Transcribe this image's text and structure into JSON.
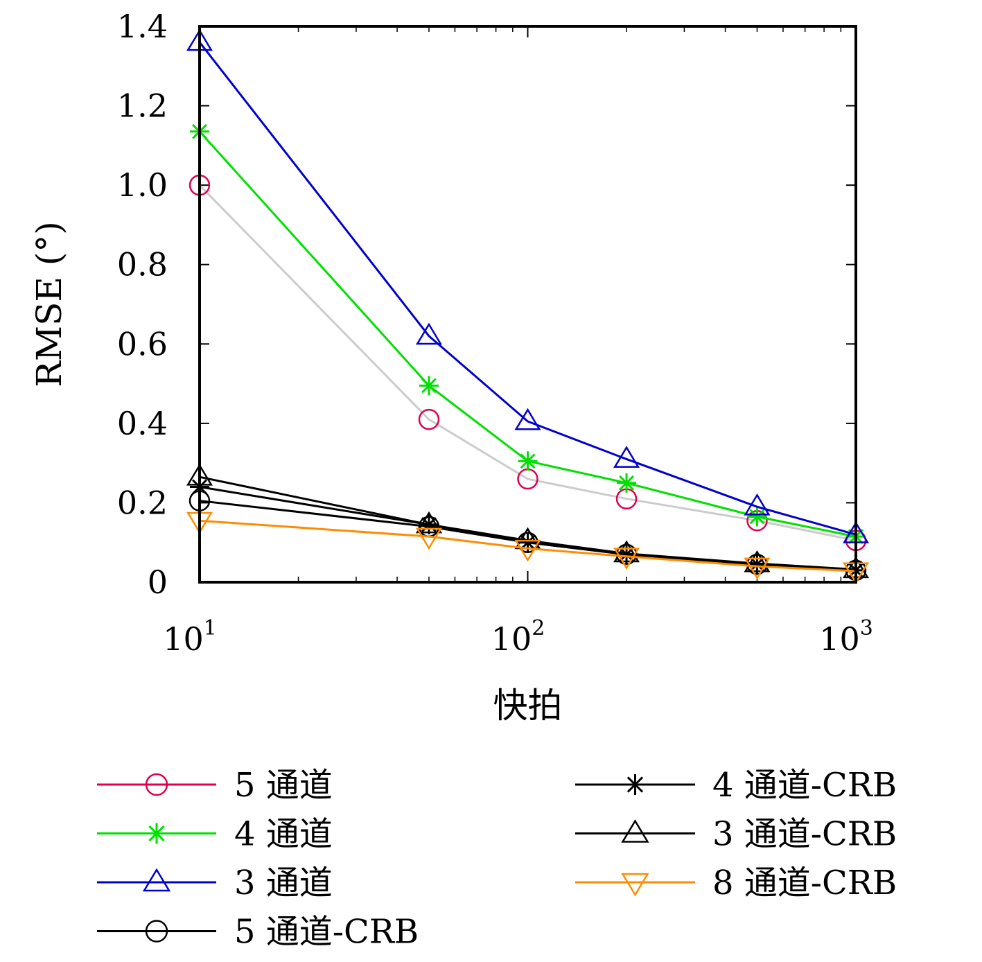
{
  "chart_data": {
    "type": "line",
    "x_scale": "log",
    "xlabel": "快拍",
    "ylabel": "RMSE (°)",
    "xlim": [
      10,
      1000
    ],
    "ylim": [
      0,
      1.4
    ],
    "x_ticks": [
      {
        "value": 10,
        "base": "10",
        "exp": "1"
      },
      {
        "value": 100,
        "base": "10",
        "exp": "2"
      },
      {
        "value": 1000,
        "base": "10",
        "exp": "3"
      }
    ],
    "y_ticks": [
      {
        "value": 0,
        "label": "0"
      },
      {
        "value": 0.2,
        "label": "0.2"
      },
      {
        "value": 0.4,
        "label": "0.4"
      },
      {
        "value": 0.6,
        "label": "0.6"
      },
      {
        "value": 0.8,
        "label": "0.8"
      },
      {
        "value": 1.0,
        "label": "1.0"
      },
      {
        "value": 1.2,
        "label": "1.2"
      },
      {
        "value": 1.4,
        "label": "1.4"
      }
    ],
    "x": [
      10,
      50,
      100,
      200,
      500,
      1000
    ],
    "series": [
      {
        "name": "5 通道",
        "color": "#e0004d",
        "line_color": "#cccccc",
        "marker": "circle",
        "values": [
          1.0,
          0.41,
          0.26,
          0.21,
          0.155,
          0.105
        ]
      },
      {
        "name": "4 通道",
        "color": "#00e000",
        "line_color": "#00e000",
        "marker": "asterisk",
        "values": [
          1.135,
          0.495,
          0.305,
          0.25,
          0.165,
          0.115
        ]
      },
      {
        "name": "3 通道",
        "color": "#0000cc",
        "line_color": "#0000cc",
        "marker": "triangle-up",
        "values": [
          1.36,
          0.62,
          0.405,
          0.31,
          0.19,
          0.12
        ]
      },
      {
        "name": "5 通道-CRB",
        "color": "#000000",
        "line_color": "#000000",
        "marker": "circle",
        "values": [
          0.205,
          0.14,
          0.1,
          0.07,
          0.045,
          0.03
        ]
      },
      {
        "name": "4 通道-CRB",
        "color": "#000000",
        "line_color": "#000000",
        "marker": "asterisk",
        "values": [
          0.24,
          0.145,
          0.1,
          0.07,
          0.045,
          0.03
        ]
      },
      {
        "name": "3 通道-CRB",
        "color": "#000000",
        "line_color": "#000000",
        "marker": "triangle-up",
        "values": [
          0.265,
          0.145,
          0.105,
          0.072,
          0.047,
          0.032
        ]
      },
      {
        "name": "8 通道-CRB",
        "color": "#ff8c00",
        "line_color": "#ff8c00",
        "marker": "triangle-down",
        "values": [
          0.155,
          0.115,
          0.085,
          0.065,
          0.04,
          0.028
        ]
      }
    ],
    "grid": false,
    "legend_position": "bottom"
  }
}
